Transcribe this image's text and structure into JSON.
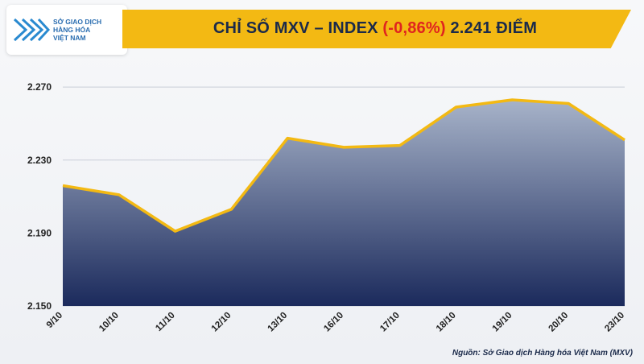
{
  "header": {
    "logo_lines": [
      "SỞ GIAO DỊCH",
      "HÀNG HÓA",
      "VIỆT NAM"
    ],
    "title_prefix": "CHỈ SỐ MXV – INDEX ",
    "title_change": "(-0,86%)",
    "title_suffix": " 2.241 ĐIỂM"
  },
  "colors": {
    "title_bar": "#f3b913",
    "line": "#f3b913",
    "area_top": "#a7b3c9",
    "area_bottom": "#1b2a5c",
    "negative": "#e0241f"
  },
  "chart_data": {
    "type": "area",
    "title": "CHỈ SỐ MXV – INDEX (-0,86%) 2.241 ĐIỂM",
    "categories": [
      "9/10",
      "10/10",
      "11/10",
      "12/10",
      "13/10",
      "16/10",
      "17/10",
      "18/10",
      "19/10",
      "20/10",
      "23/10"
    ],
    "values": [
      2216,
      2211,
      2191,
      2203,
      2242,
      2237,
      2238,
      2259,
      2263,
      2261,
      2241
    ],
    "ytick_labels": [
      "2.150",
      "2.190",
      "2.230",
      "2.270"
    ],
    "yticks": [
      2150,
      2190,
      2230,
      2270
    ],
    "ylim": [
      2150,
      2278
    ],
    "grid": true
  },
  "source": "Nguồn: Sở Giao dịch Hàng hóa Việt Nam (MXV)"
}
